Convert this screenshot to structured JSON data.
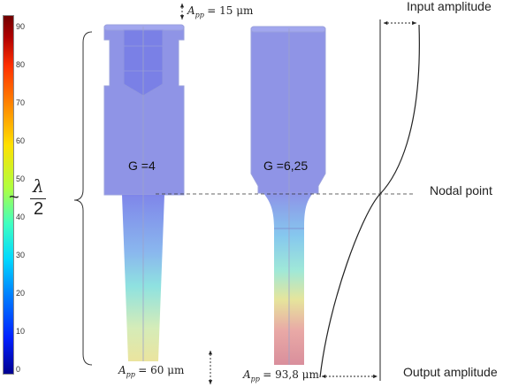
{
  "colorbar": {
    "ticks": [
      "90",
      "80",
      "70",
      "60",
      "50",
      "40",
      "30",
      "20",
      "10",
      "0"
    ],
    "colors": [
      "#0000a0",
      "#0040ff",
      "#00c0ff",
      "#40ffc0",
      "#c0ff40",
      "#ffe000",
      "#ff8000",
      "#e00000",
      "#800000"
    ]
  },
  "annotations": {
    "input_amplitude": "Input amplitude",
    "nodal_point": "Nodal point",
    "output_amplitude": "Output amplitude",
    "half_wavelength": {
      "tilde": "~",
      "numerator": "λ",
      "denominator": "2"
    }
  },
  "horn_left": {
    "gain": "G =4",
    "amp_in": "A",
    "amp_in_sub": "pp",
    "amp_in_value": "= 15 μm",
    "amp_out": "A",
    "amp_out_sub": "pp",
    "amp_out_value": "= 60 μm"
  },
  "horn_right": {
    "gain": "G =6,25",
    "amp_out": "A",
    "amp_out_sub": "pp",
    "amp_out_value": "= 93,8 μm"
  },
  "colors": {
    "upper_body": "#8f94e6",
    "cone_top": "#7f86ea",
    "cone_mid": "#7fe3e0",
    "cone_bottom": "#e6e39b",
    "right_bottom": "#d99ca6"
  }
}
